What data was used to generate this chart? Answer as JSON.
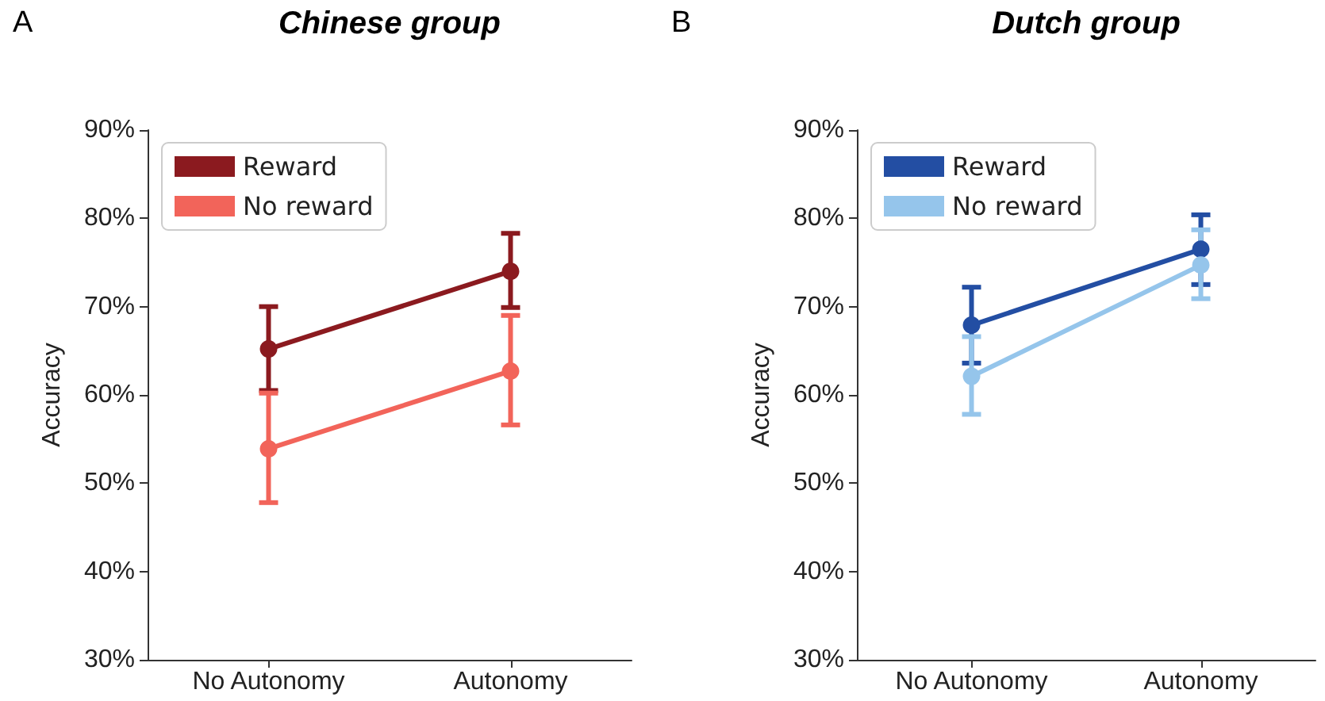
{
  "chart_data": [
    {
      "type": "line",
      "title": "Chinese group",
      "ylabel": "Accuracy",
      "annotations": [
        "A"
      ],
      "categories": [
        "No Autonomy",
        "Autonomy"
      ],
      "ylim": [
        30,
        90
      ],
      "yticks": [
        {
          "value": 30,
          "label": "30%"
        },
        {
          "value": 40,
          "label": "40%"
        },
        {
          "value": 50,
          "label": "50%"
        },
        {
          "value": 60,
          "label": "60%"
        },
        {
          "value": 70,
          "label": "70%"
        },
        {
          "value": 80,
          "label": "80%"
        },
        {
          "value": 90,
          "label": "90%"
        }
      ],
      "grid": false,
      "legend": "top left",
      "marker": "circle",
      "series": [
        {
          "name": "Reward",
          "color": "#8b1a1f",
          "values": [
            65.2,
            74.0
          ],
          "errors": [
            [
              60.5,
              70.0
            ],
            [
              69.9,
              78.3
            ]
          ]
        },
        {
          "name": "No reward",
          "color": "#f2645a",
          "values": [
            53.9,
            62.7
          ],
          "errors": [
            [
              47.8,
              60.2
            ],
            [
              56.6,
              69.0
            ]
          ]
        }
      ]
    },
    {
      "type": "line",
      "title": "Dutch group",
      "ylabel": "Accuracy",
      "annotations": [
        "B"
      ],
      "categories": [
        "No Autonomy",
        "Autonomy"
      ],
      "ylim": [
        30,
        90
      ],
      "yticks": [
        {
          "value": 30,
          "label": "30%"
        },
        {
          "value": 40,
          "label": "40%"
        },
        {
          "value": 50,
          "label": "50%"
        },
        {
          "value": 60,
          "label": "60%"
        },
        {
          "value": 70,
          "label": "70%"
        },
        {
          "value": 80,
          "label": "80%"
        },
        {
          "value": 90,
          "label": "90%"
        }
      ],
      "grid": false,
      "legend": "top left",
      "marker": "circle",
      "series": [
        {
          "name": "Reward",
          "color": "#234ea3",
          "values": [
            67.9,
            76.5
          ],
          "errors": [
            [
              63.6,
              72.2
            ],
            [
              72.5,
              80.4
            ]
          ]
        },
        {
          "name": "No reward",
          "color": "#95c5eb",
          "values": [
            62.1,
            74.7
          ],
          "errors": [
            [
              57.8,
              66.6
            ],
            [
              70.9,
              78.7
            ]
          ]
        }
      ]
    }
  ]
}
